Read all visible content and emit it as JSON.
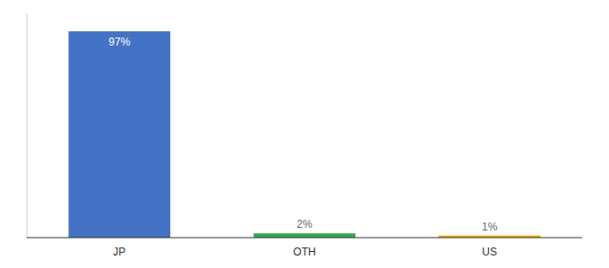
{
  "chart_data": {
    "type": "bar",
    "categories": [
      "JP",
      "OTH",
      "US"
    ],
    "values": [
      97,
      2,
      1
    ],
    "value_labels": [
      "97%",
      "2%",
      "1%"
    ],
    "colors": [
      "#4472C4",
      "#33A853",
      "#F4A300"
    ],
    "ylim": [
      0,
      105
    ],
    "data_labels": true,
    "tick_labels": "x"
  }
}
